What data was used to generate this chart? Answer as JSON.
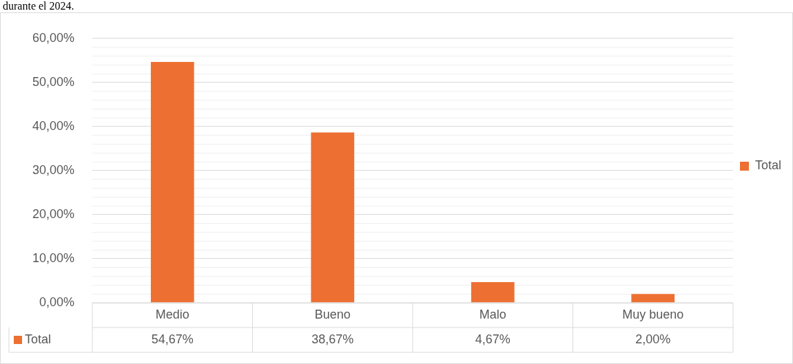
{
  "chart_data": {
    "type": "bar",
    "annotations": [
      "durante el 2024."
    ],
    "categories": [
      "Medio",
      "Bueno",
      "Malo",
      "Muy bueno"
    ],
    "series": [
      {
        "name": "Total",
        "color": "#ed7032",
        "values": [
          54.67,
          38.67,
          4.67,
          2.0
        ],
        "value_labels": [
          "54,67%",
          "38,67%",
          "4,67%",
          "2,00%"
        ]
      }
    ],
    "ylim": [
      0,
      60
    ],
    "yticks": [
      {
        "value": 0,
        "label": "0,00%"
      },
      {
        "value": 2,
        "label": null
      },
      {
        "value": 4,
        "label": null
      },
      {
        "value": 6,
        "label": null
      },
      {
        "value": 8,
        "label": null
      },
      {
        "value": 10,
        "label": "10,00%"
      },
      {
        "value": 12,
        "label": null
      },
      {
        "value": 14,
        "label": null
      },
      {
        "value": 16,
        "label": null
      },
      {
        "value": 18,
        "label": null
      },
      {
        "value": 20,
        "label": "20,00%"
      },
      {
        "value": 22,
        "label": null
      },
      {
        "value": 24,
        "label": null
      },
      {
        "value": 26,
        "label": null
      },
      {
        "value": 28,
        "label": null
      },
      {
        "value": 30,
        "label": "30,00%"
      },
      {
        "value": 32,
        "label": null
      },
      {
        "value": 34,
        "label": null
      },
      {
        "value": 36,
        "label": null
      },
      {
        "value": 38,
        "label": null
      },
      {
        "value": 40,
        "label": "40,00%"
      },
      {
        "value": 42,
        "label": null
      },
      {
        "value": 44,
        "label": null
      },
      {
        "value": 46,
        "label": null
      },
      {
        "value": 48,
        "label": null
      },
      {
        "value": 50,
        "label": "50,00%"
      },
      {
        "value": 52,
        "label": null
      },
      {
        "value": 54,
        "label": null
      },
      {
        "value": 56,
        "label": null
      },
      {
        "value": 58,
        "label": null
      },
      {
        "value": 60,
        "label": "60,00%"
      }
    ],
    "grid": true,
    "legend": "right"
  }
}
